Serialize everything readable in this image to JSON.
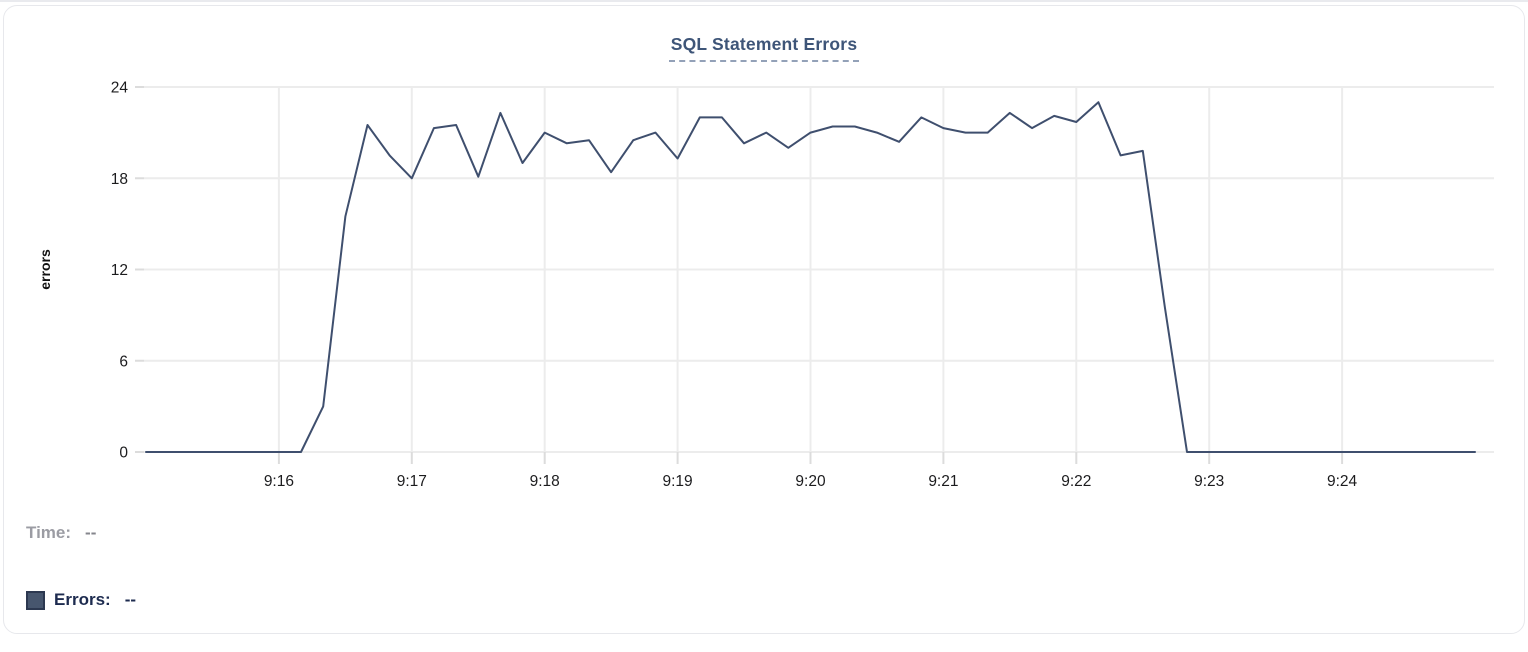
{
  "panel": {
    "title": "SQL Statement Errors"
  },
  "chart_data": {
    "type": "line",
    "title": "SQL Statement Errors",
    "xlabel": "",
    "ylabel": "errors",
    "y_ticks": [
      0,
      6,
      12,
      18,
      24
    ],
    "ylim": [
      0,
      24
    ],
    "x_tick_labels": [
      "9:16",
      "9:17",
      "9:18",
      "9:19",
      "9:20",
      "9:21",
      "9:22",
      "9:23",
      "9:24"
    ],
    "x_range": [
      "9:15:00",
      "9:25:00"
    ],
    "grid": true,
    "legend_position": "none",
    "series": [
      {
        "name": "Errors",
        "times": [
          "9:15:00",
          "9:15:10",
          "9:15:20",
          "9:15:30",
          "9:15:40",
          "9:15:50",
          "9:16:00",
          "9:16:10",
          "9:16:20",
          "9:16:30",
          "9:16:40",
          "9:16:50",
          "9:17:00",
          "9:17:10",
          "9:17:20",
          "9:17:30",
          "9:17:40",
          "9:17:50",
          "9:18:00",
          "9:18:10",
          "9:18:20",
          "9:18:30",
          "9:18:40",
          "9:18:50",
          "9:19:00",
          "9:19:10",
          "9:19:20",
          "9:19:30",
          "9:19:40",
          "9:19:50",
          "9:20:00",
          "9:20:10",
          "9:20:20",
          "9:20:30",
          "9:20:40",
          "9:20:50",
          "9:21:00",
          "9:21:10",
          "9:21:20",
          "9:21:30",
          "9:21:40",
          "9:21:50",
          "9:22:00",
          "9:22:10",
          "9:22:20",
          "9:22:30",
          "9:22:40",
          "9:22:50",
          "9:23:00",
          "9:23:10",
          "9:23:20",
          "9:23:30",
          "9:23:40",
          "9:23:50",
          "9:24:00",
          "9:24:10",
          "9:24:20",
          "9:24:30",
          "9:24:40",
          "9:24:50",
          "9:25:00"
        ],
        "values": [
          0,
          0,
          0,
          0,
          0,
          0,
          0,
          0,
          3,
          15.5,
          21.5,
          19.5,
          18,
          21.3,
          21.5,
          18.1,
          22.3,
          19,
          21,
          20.3,
          20.5,
          18.4,
          20.5,
          21,
          19.3,
          22,
          22,
          20.3,
          21,
          20,
          21,
          21.4,
          21.4,
          21,
          20.4,
          22,
          21.3,
          21,
          21,
          22.3,
          21.3,
          22.1,
          21.7,
          23,
          19.5,
          19.8,
          9.5,
          0,
          0,
          0,
          0,
          0,
          0,
          0,
          0,
          0,
          0,
          0,
          0,
          0,
          0
        ]
      }
    ]
  },
  "tooltip": {
    "time_label": "Time:",
    "time_value": "--",
    "errors_label": "Errors:",
    "errors_value": "--"
  },
  "colors": {
    "title": "#3e5578",
    "title_underline": "#93a1b8",
    "line": "#3f4f6e",
    "grid": "#ececec",
    "tick_mark": "#dcdcdc",
    "axis_text": "#1c1c1e",
    "axis_label": "#111111",
    "time_label": "#9b9ca3",
    "time_value": "#85868c",
    "errors_label": "#1d2b4f",
    "swatch_fill": "#47566e",
    "swatch_border": "#2c3850",
    "card_border": "#e7e8ec"
  }
}
